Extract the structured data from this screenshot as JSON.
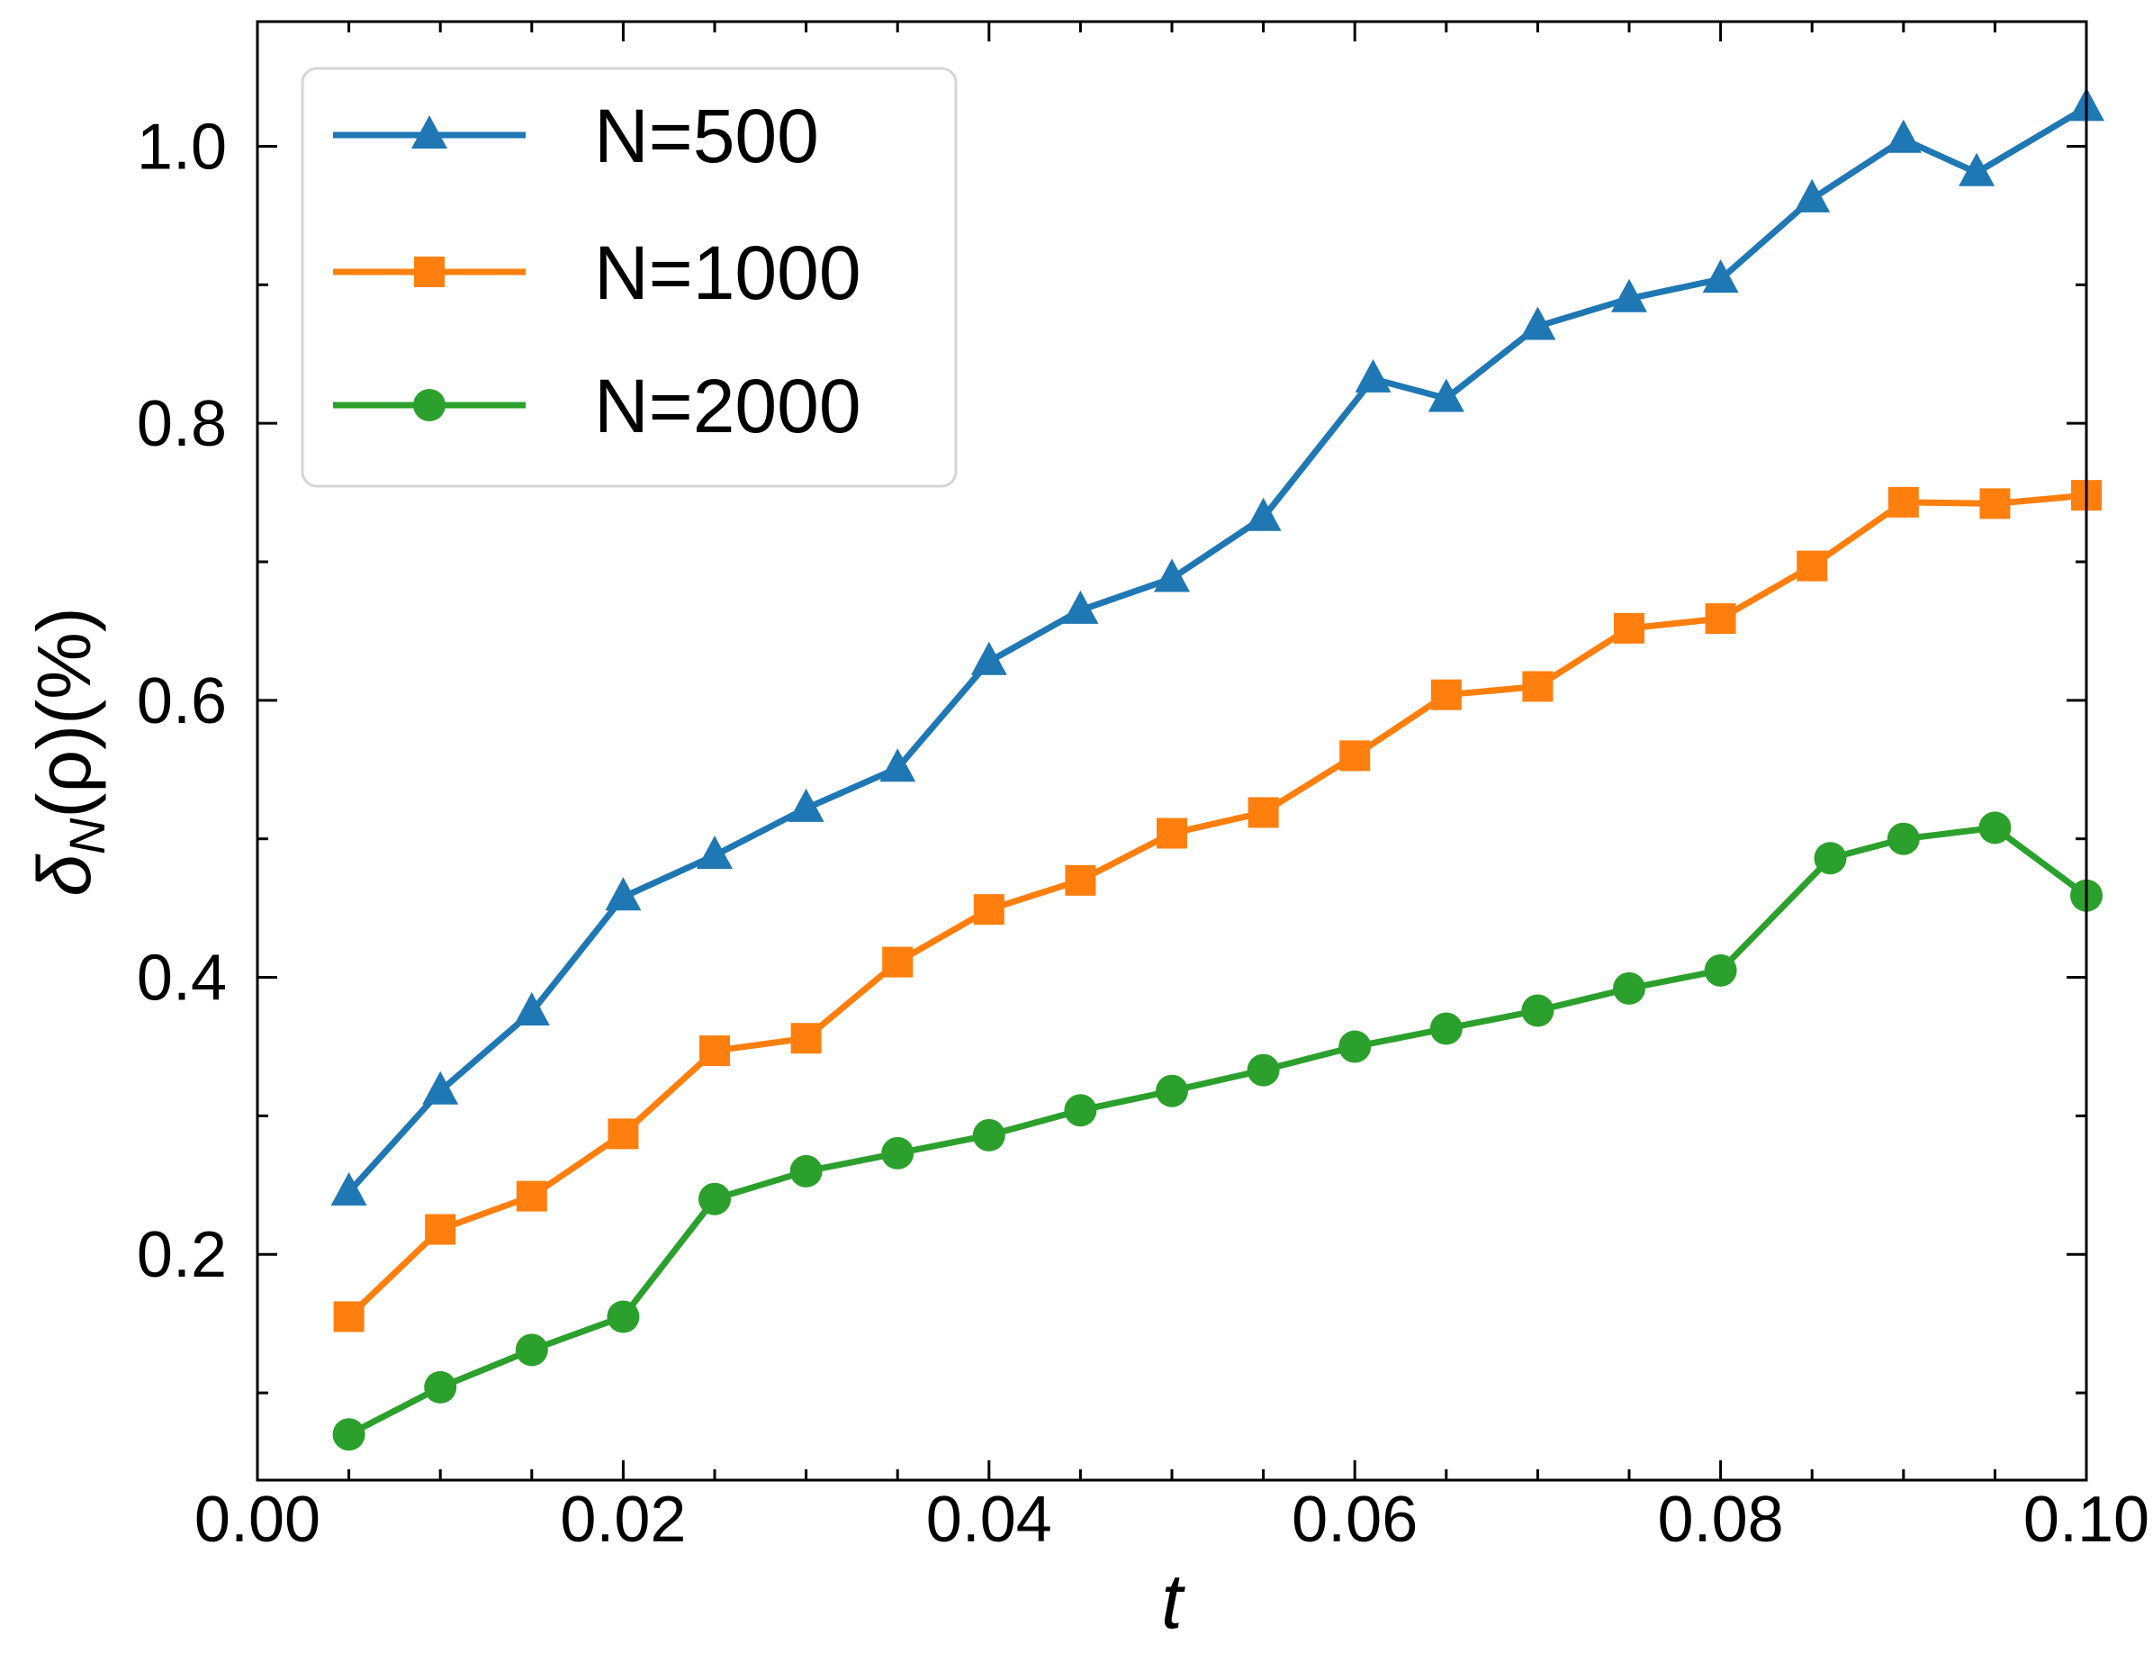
{
  "chart_data": {
    "type": "line",
    "xlabel": "t",
    "ylabel": {
      "main": "δ",
      "subscript": "N",
      "rest": "(ρ)(%)"
    },
    "xlim": [
      0.0,
      0.1
    ],
    "ylim": [
      0.037,
      1.09
    ],
    "xticks": [
      0.0,
      0.02,
      0.04,
      0.06,
      0.08,
      0.1
    ],
    "xtick_labels": [
      "0.00",
      "0.02",
      "0.04",
      "0.06",
      "0.08",
      "0.10"
    ],
    "yticks": [
      0.2,
      0.4,
      0.6,
      0.8,
      1.0
    ],
    "ytick_labels": [
      "0.2",
      "0.4",
      "0.6",
      "0.8",
      "1.0"
    ],
    "grid": false,
    "legend_position": "top-left",
    "series": [
      {
        "name": "N=500",
        "color": "#1f77b4",
        "marker": "triangle",
        "x": [
          0.005,
          0.01,
          0.015,
          0.02,
          0.025,
          0.03,
          0.035,
          0.04,
          0.045,
          0.05,
          0.055,
          0.061,
          0.065,
          0.07,
          0.075,
          0.08,
          0.085,
          0.09,
          0.094,
          0.1
        ],
        "y": [
          0.245,
          0.318,
          0.375,
          0.458,
          0.488,
          0.522,
          0.551,
          0.628,
          0.665,
          0.688,
          0.732,
          0.832,
          0.818,
          0.87,
          0.89,
          0.904,
          0.962,
          1.005,
          0.981,
          1.028
        ]
      },
      {
        "name": "N=1000",
        "color": "#ff7f0e",
        "marker": "square",
        "x": [
          0.005,
          0.01,
          0.015,
          0.02,
          0.025,
          0.03,
          0.035,
          0.04,
          0.045,
          0.05,
          0.055,
          0.06,
          0.065,
          0.07,
          0.075,
          0.08,
          0.085,
          0.09,
          0.095,
          0.1
        ],
        "y": [
          0.155,
          0.218,
          0.242,
          0.287,
          0.347,
          0.356,
          0.411,
          0.449,
          0.47,
          0.504,
          0.519,
          0.56,
          0.604,
          0.61,
          0.652,
          0.659,
          0.697,
          0.743,
          0.742,
          0.748
        ]
      },
      {
        "name": "N=2000",
        "color": "#2ca02c",
        "marker": "circle",
        "x": [
          0.005,
          0.01,
          0.015,
          0.02,
          0.025,
          0.03,
          0.035,
          0.04,
          0.045,
          0.05,
          0.055,
          0.06,
          0.065,
          0.07,
          0.075,
          0.08,
          0.086,
          0.09,
          0.095,
          0.1
        ],
        "y": [
          0.07,
          0.104,
          0.131,
          0.155,
          0.24,
          0.26,
          0.273,
          0.286,
          0.304,
          0.318,
          0.333,
          0.35,
          0.363,
          0.376,
          0.392,
          0.405,
          0.486,
          0.5,
          0.508,
          0.459
        ]
      }
    ]
  }
}
